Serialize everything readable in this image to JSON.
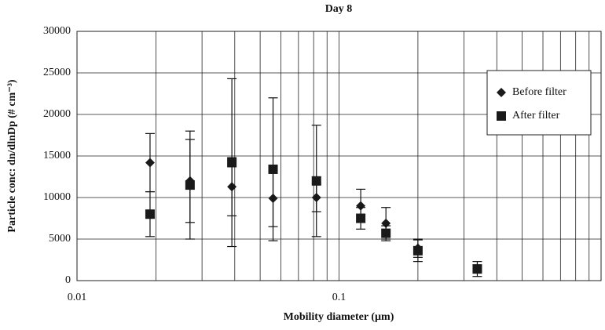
{
  "chart_data": {
    "type": "scatter",
    "title": "Day 8",
    "x_label": "Mobility diameter (µm)",
    "y_label": "Particle conc: dn/dlnDp (# cm⁻³)",
    "x": [
      0.019,
      0.027,
      0.039,
      0.056,
      0.082,
      0.121,
      0.151,
      0.2,
      0.337
    ],
    "series": [
      {
        "name": "Before filter",
        "marker": "diamond",
        "color": "#1a1a1a",
        "values": [
          14200,
          12000,
          11300,
          9900,
          10000,
          9000,
          6900,
          3900,
          1500
        ],
        "errors": [
          3500,
          5000,
          3500,
          3400,
          1700,
          2000,
          1900,
          1100,
          400
        ]
      },
      {
        "name": "After filter",
        "marker": "square",
        "color": "#1a1a1a",
        "values": [
          8000,
          11500,
          14200,
          13400,
          12000,
          7500,
          5700,
          3600,
          1400
        ],
        "errors": [
          2700,
          6500,
          10100,
          8600,
          6700,
          1300,
          900,
          1300,
          900
        ]
      }
    ],
    "log_x": true,
    "xlim": [
      0.01,
      1
    ],
    "xticks": [
      0.01,
      0.1
    ],
    "x_minor_ticks": [
      0.02,
      0.03,
      0.04,
      0.05,
      0.06,
      0.07,
      0.08,
      0.09,
      0.2,
      0.3,
      0.4,
      0.5,
      0.6,
      0.7,
      0.8,
      0.9
    ],
    "ylim": [
      0,
      30000
    ],
    "yticks": [
      0,
      5000,
      10000,
      15000,
      20000,
      25000,
      30000
    ],
    "grid": true,
    "legend": "upper right"
  }
}
